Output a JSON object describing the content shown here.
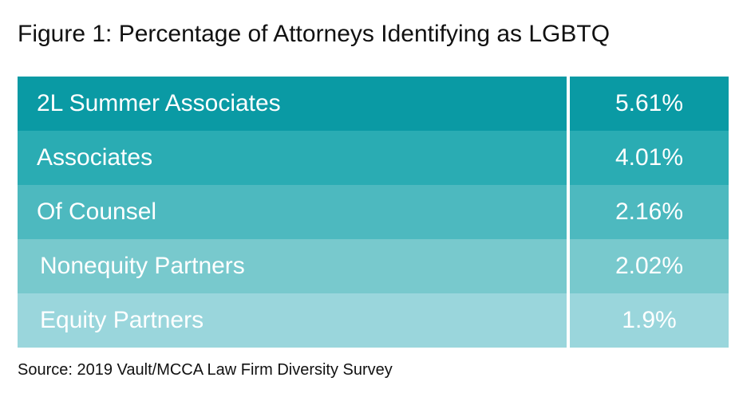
{
  "header": {
    "title": "Figure 1: Percentage of Attorneys Identifying as LGBTQ"
  },
  "table": {
    "rows": [
      [
        "2L Summer Associates",
        "5.61%"
      ],
      [
        "Associates",
        "4.01%"
      ],
      [
        "Of Counsel",
        "2.16%"
      ],
      [
        "Nonequity Partners",
        "2.02%"
      ],
      [
        "Equity Partners",
        "1.9%"
      ]
    ]
  },
  "footer": {
    "source": "Source: 2019 Vault/MCCA Law Firm Diversity Survey"
  }
}
